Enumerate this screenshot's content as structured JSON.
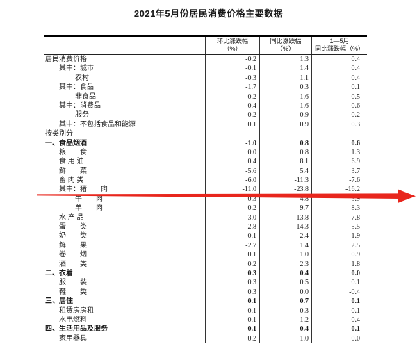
{
  "title": "2021年5月份居民消费价格主要数据",
  "table": {
    "columns": [
      {
        "line1": "环比涨跌幅",
        "line2": "（%）"
      },
      {
        "line1": "同比涨跌幅",
        "line2": "（%）"
      },
      {
        "line1": "1—5月",
        "line2": "同比涨跌幅（%）"
      }
    ],
    "rows": [
      {
        "label": "居民消费价格",
        "indent": 0,
        "bold": false,
        "values": [
          "-0.2",
          "1.3",
          "0.4"
        ]
      },
      {
        "label": "其中：城市",
        "indent": 1,
        "bold": false,
        "values": [
          "-0.1",
          "1.4",
          "0.4"
        ]
      },
      {
        "label": "农村",
        "indent": 2,
        "bold": false,
        "values": [
          "-0.3",
          "1.1",
          "0.4"
        ]
      },
      {
        "label": "其中：食品",
        "indent": 1,
        "bold": false,
        "values": [
          "-1.7",
          "0.3",
          "0.1"
        ]
      },
      {
        "label": "非食品",
        "indent": 2,
        "bold": false,
        "values": [
          "0.2",
          "1.6",
          "0.5"
        ]
      },
      {
        "label": "其中：消费品",
        "indent": 1,
        "bold": false,
        "values": [
          "-0.4",
          "1.6",
          "0.6"
        ]
      },
      {
        "label": "服务",
        "indent": 2,
        "bold": false,
        "values": [
          "0.2",
          "0.9",
          "0.2"
        ]
      },
      {
        "label": "其中：不包括食品和能源",
        "indent": 1,
        "bold": false,
        "values": [
          "0.1",
          "0.9",
          "0.3"
        ]
      },
      {
        "label": "按类别分",
        "indent": 0,
        "bold": false,
        "values": [
          "",
          "",
          ""
        ]
      },
      {
        "label": "一、食品烟酒",
        "indent": 0,
        "bold": true,
        "values": [
          "-1.0",
          "0.8",
          "0.6"
        ]
      },
      {
        "label": "粮　　食",
        "indent": 1,
        "bold": false,
        "values": [
          "0.0",
          "0.8",
          "1.3"
        ]
      },
      {
        "label": "食 用 油",
        "indent": 1,
        "bold": false,
        "values": [
          "0.4",
          "8.1",
          "6.9"
        ]
      },
      {
        "label": "鲜　　菜",
        "indent": 1,
        "bold": false,
        "values": [
          "-5.6",
          "5.4",
          "3.7"
        ]
      },
      {
        "label": "畜 肉 类",
        "indent": 1,
        "bold": false,
        "values": [
          "-6.0",
          "-11.3",
          "-7.6"
        ]
      },
      {
        "label": "其中：猪　　肉",
        "indent": 1,
        "bold": false,
        "values": [
          "-11.0",
          "-23.8",
          "-16.2"
        ],
        "highlighted_by_arrow": true
      },
      {
        "label": "牛　　肉",
        "indent": 2,
        "bold": false,
        "values": [
          "-0.3",
          "4.8",
          "3.9"
        ]
      },
      {
        "label": "羊　　肉",
        "indent": 2,
        "bold": false,
        "values": [
          "-0.2",
          "9.7",
          "8.3"
        ]
      },
      {
        "label": "水 产 品",
        "indent": 1,
        "bold": false,
        "values": [
          "3.0",
          "13.8",
          "7.8"
        ]
      },
      {
        "label": "蛋　　类",
        "indent": 1,
        "bold": false,
        "values": [
          "2.8",
          "14.3",
          "5.5"
        ]
      },
      {
        "label": "奶　　类",
        "indent": 1,
        "bold": false,
        "values": [
          "-0.1",
          "2.4",
          "1.9"
        ]
      },
      {
        "label": "鲜　　果",
        "indent": 1,
        "bold": false,
        "values": [
          "-2.7",
          "1.4",
          "2.5"
        ]
      },
      {
        "label": "卷　　烟",
        "indent": 1,
        "bold": false,
        "values": [
          "0.1",
          "1.0",
          "0.9"
        ]
      },
      {
        "label": "酒　　类",
        "indent": 1,
        "bold": false,
        "values": [
          "0.2",
          "2.3",
          "1.8"
        ]
      },
      {
        "label": "二、衣着",
        "indent": 0,
        "bold": true,
        "values": [
          "0.3",
          "0.4",
          "0.0"
        ]
      },
      {
        "label": "服　　装",
        "indent": 1,
        "bold": false,
        "values": [
          "0.3",
          "0.5",
          "0.1"
        ]
      },
      {
        "label": "鞋　　类",
        "indent": 1,
        "bold": false,
        "values": [
          "0.3",
          "0.0",
          "-0.4"
        ]
      },
      {
        "label": "三、居住",
        "indent": 0,
        "bold": true,
        "values": [
          "0.1",
          "0.7",
          "0.1"
        ]
      },
      {
        "label": "租赁房房租",
        "indent": 1,
        "bold": false,
        "values": [
          "0.1",
          "0.3",
          "-0.1"
        ]
      },
      {
        "label": "水电燃料",
        "indent": 1,
        "bold": false,
        "values": [
          "0.1",
          "1.2",
          "0.4"
        ]
      },
      {
        "label": "四、生活用品及服务",
        "indent": 0,
        "bold": true,
        "values": [
          "-0.1",
          "0.4",
          "0.1"
        ]
      },
      {
        "label": "家用器具",
        "indent": 1,
        "bold": false,
        "values": [
          "0.2",
          "1.0",
          "0.0"
        ]
      }
    ]
  },
  "annotation": {
    "arrow_color": "#e8261d",
    "arrow_points_at": "其中：猪　　肉"
  }
}
